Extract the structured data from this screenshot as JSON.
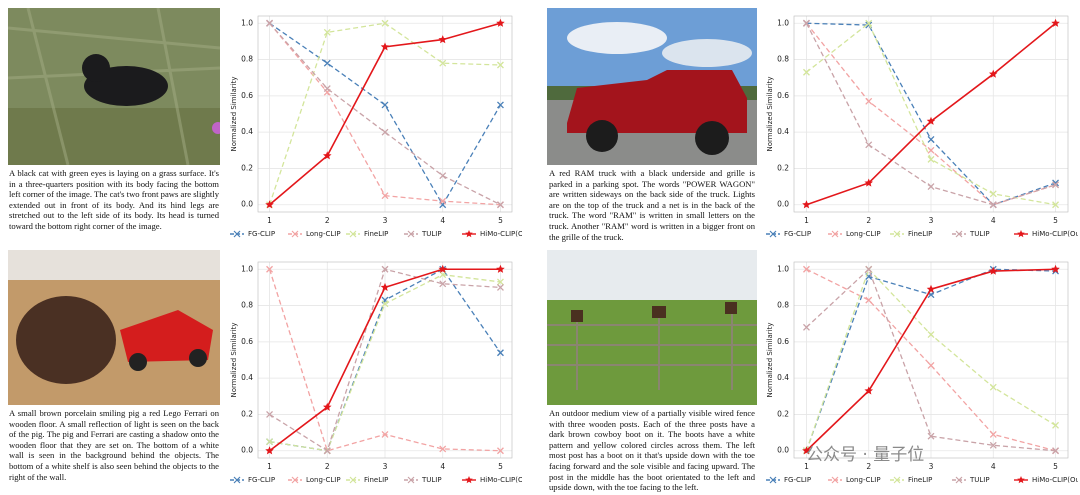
{
  "captions": [
    "A black cat with green eyes is laying on a grass surface. It's in a three-quarters position with its body facing the bottom left corner of the image. The cat's two front paws are slightly extended out in front of its body. And its hind legs are stretched out to the left side of its body. Its head is turned toward the bottom right corner of the image.",
    "A red RAM truck with a black underside and grille is parked in a parking spot. The words \"POWER WAGON\" are written sideways on the back side of the truck. Lights are on the top of the truck and a net is in the back of the truck. The word \"RAM\" is written in small letters on the truck. Another \"RAM\" word is written in a bigger front on the grille of the truck.",
    "A small brown porcelain smiling pig a red Lego Ferrari on wooden floor. A small reflection of light is seen on the back of the pig. The pig and Ferrari are casting a shadow onto the wooden floor that they are set on. The bottom of a white wall is seen in the background behind the objects. The bottom of a white shelf is also seen behind the objects to the right of the wall.",
    "An outdoor medium view of a partially visible wired fence with three wooden posts. Each of the three posts have a dark brown cowboy boot on it. The boots have a white pattern and yellow colored circles across them. The left most post has a boot on it that's upside down with the toe facing forward and the sole visible and facing upward. The post in the middle has the boot orientated to the left and upside down, with the toe facing to the left."
  ],
  "watermark": "公众号 · 量子位",
  "chart_data": [
    {
      "type": "line",
      "ylabel": "Normalized Similarity",
      "x": [
        1,
        2,
        3,
        4,
        5
      ],
      "xlim": [
        0.8,
        5.2
      ],
      "xticks": [
        1,
        2,
        3,
        4,
        5
      ],
      "ylim": [
        -0.04,
        1.04
      ],
      "yticks": [
        {
          "value": 0,
          "label": "0.0"
        },
        {
          "value": 0.2,
          "label": "0.2"
        },
        {
          "value": 0.4,
          "label": "0.4"
        },
        {
          "value": 0.6,
          "label": "0.6"
        },
        {
          "value": 0.8,
          "label": "0.8"
        },
        {
          "value": 1,
          "label": "1.0"
        }
      ],
      "grid": true,
      "legend": "bottom",
      "series": [
        {
          "name": "FG-CLIP",
          "color": "#4a80b8",
          "linestyle": "dashed",
          "marker": "x",
          "values": [
            1.0,
            0.78,
            0.55,
            0.0,
            0.55
          ]
        },
        {
          "name": "Long-CLIP",
          "color": "#f2a3a3",
          "linestyle": "dashed",
          "marker": "x",
          "values": [
            1.0,
            0.62,
            0.05,
            0.02,
            0.0
          ]
        },
        {
          "name": "FineLIP",
          "color": "#d3e59b",
          "linestyle": "dashed",
          "marker": "x",
          "values": [
            0.0,
            0.95,
            1.0,
            0.78,
            0.77
          ]
        },
        {
          "name": "TULIP",
          "color": "#c9a3a8",
          "linestyle": "dashed",
          "marker": "x",
          "values": [
            1.0,
            0.64,
            0.4,
            0.16,
            0.0
          ]
        },
        {
          "name": "HiMo-CLIP(Ours)",
          "color": "#e3171b",
          "linestyle": "solid",
          "marker": "star",
          "values": [
            0.0,
            0.27,
            0.87,
            0.91,
            1.0
          ]
        }
      ]
    },
    {
      "type": "line",
      "ylabel": "Normalized Similarity",
      "x": [
        1,
        2,
        3,
        4,
        5
      ],
      "xlim": [
        0.8,
        5.2
      ],
      "xticks": [
        1,
        2,
        3,
        4,
        5
      ],
      "ylim": [
        -0.04,
        1.04
      ],
      "yticks": [
        {
          "value": 0,
          "label": "0.0"
        },
        {
          "value": 0.2,
          "label": "0.2"
        },
        {
          "value": 0.4,
          "label": "0.4"
        },
        {
          "value": 0.6,
          "label": "0.6"
        },
        {
          "value": 0.8,
          "label": "0.8"
        },
        {
          "value": 1,
          "label": "1.0"
        }
      ],
      "grid": true,
      "legend": "bottom",
      "series": [
        {
          "name": "FG-CLIP",
          "color": "#4a80b8",
          "linestyle": "dashed",
          "marker": "x",
          "values": [
            1.0,
            0.99,
            0.36,
            0.0,
            0.12
          ]
        },
        {
          "name": "Long-CLIP",
          "color": "#f2a3a3",
          "linestyle": "dashed",
          "marker": "x",
          "values": [
            1.0,
            0.57,
            0.3,
            0.0,
            0.11
          ]
        },
        {
          "name": "FineLIP",
          "color": "#d3e59b",
          "linestyle": "dashed",
          "marker": "x",
          "values": [
            0.73,
            1.0,
            0.25,
            0.06,
            0.0
          ]
        },
        {
          "name": "TULIP",
          "color": "#c9a3a8",
          "linestyle": "dashed",
          "marker": "x",
          "values": [
            1.0,
            0.33,
            0.1,
            0.0,
            0.11
          ]
        },
        {
          "name": "HiMo-CLIP(Ours)",
          "color": "#e3171b",
          "linestyle": "solid",
          "marker": "star",
          "values": [
            0.0,
            0.12,
            0.46,
            0.72,
            1.0
          ]
        }
      ]
    },
    {
      "type": "line",
      "ylabel": "Normalized Similarity",
      "x": [
        1,
        2,
        3,
        4,
        5
      ],
      "xlim": [
        0.8,
        5.2
      ],
      "xticks": [
        1,
        2,
        3,
        4,
        5
      ],
      "ylim": [
        -0.04,
        1.04
      ],
      "yticks": [
        {
          "value": 0,
          "label": "0.0"
        },
        {
          "value": 0.2,
          "label": "0.2"
        },
        {
          "value": 0.4,
          "label": "0.4"
        },
        {
          "value": 0.6,
          "label": "0.6"
        },
        {
          "value": 0.8,
          "label": "0.8"
        },
        {
          "value": 1,
          "label": "1.0"
        }
      ],
      "grid": true,
      "legend": "bottom",
      "series": [
        {
          "name": "FG-CLIP",
          "color": "#4a80b8",
          "linestyle": "dashed",
          "marker": "x",
          "values": [
            0.05,
            0.0,
            0.83,
            1.0,
            0.54
          ]
        },
        {
          "name": "Long-CLIP",
          "color": "#f2a3a3",
          "linestyle": "dashed",
          "marker": "x",
          "values": [
            1.0,
            0.0,
            0.09,
            0.01,
            0.0
          ]
        },
        {
          "name": "FineLIP",
          "color": "#d3e59b",
          "linestyle": "dashed",
          "marker": "x",
          "values": [
            0.05,
            0.0,
            0.81,
            0.97,
            0.93
          ]
        },
        {
          "name": "TULIP",
          "color": "#c9a3a8",
          "linestyle": "dashed",
          "marker": "x",
          "values": [
            0.2,
            0.0,
            1.0,
            0.92,
            0.9
          ]
        },
        {
          "name": "HiMo-CLIP(Ours)",
          "color": "#e3171b",
          "linestyle": "solid",
          "marker": "star",
          "values": [
            0.0,
            0.24,
            0.9,
            1.0,
            1.0
          ]
        }
      ]
    },
    {
      "type": "line",
      "ylabel": "Normalized Similarity",
      "x": [
        1,
        2,
        3,
        4,
        5
      ],
      "xlim": [
        0.8,
        5.2
      ],
      "xticks": [
        1,
        2,
        3,
        4,
        5
      ],
      "ylim": [
        -0.04,
        1.04
      ],
      "yticks": [
        {
          "value": 0,
          "label": "0.0"
        },
        {
          "value": 0.2,
          "label": "0.2"
        },
        {
          "value": 0.4,
          "label": "0.4"
        },
        {
          "value": 0.6,
          "label": "0.6"
        },
        {
          "value": 0.8,
          "label": "0.8"
        },
        {
          "value": 1,
          "label": "1.0"
        }
      ],
      "grid": true,
      "legend": "bottom",
      "series": [
        {
          "name": "FG-CLIP",
          "color": "#4a80b8",
          "linestyle": "dashed",
          "marker": "x",
          "values": [
            0.0,
            0.96,
            0.86,
            1.0,
            0.99
          ]
        },
        {
          "name": "Long-CLIP",
          "color": "#f2a3a3",
          "linestyle": "dashed",
          "marker": "x",
          "values": [
            1.0,
            0.83,
            0.47,
            0.09,
            0.0
          ]
        },
        {
          "name": "FineLIP",
          "color": "#d3e59b",
          "linestyle": "dashed",
          "marker": "x",
          "values": [
            0.0,
            1.0,
            0.64,
            0.35,
            0.14
          ]
        },
        {
          "name": "TULIP",
          "color": "#c9a3a8",
          "linestyle": "dashed",
          "marker": "x",
          "values": [
            0.68,
            1.0,
            0.08,
            0.03,
            0.0
          ]
        },
        {
          "name": "HiMo-CLIP(Ours)",
          "color": "#e3171b",
          "linestyle": "solid",
          "marker": "star",
          "values": [
            0.0,
            0.33,
            0.89,
            0.99,
            1.0
          ]
        }
      ]
    }
  ]
}
